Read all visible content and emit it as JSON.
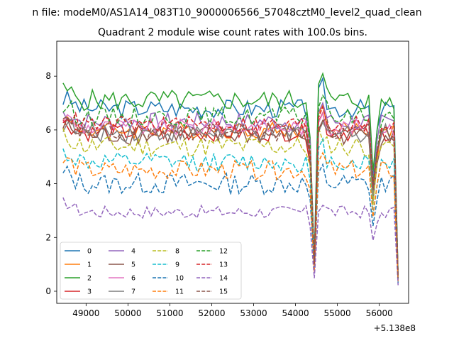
{
  "chart_data": {
    "type": "line",
    "suptitle": "n file: modeM0/AS1A14_083T10_9000006566_57048cztM0_level2_quad_clean",
    "title": "Quadrant 2 module wise count rates with 100.0s bins.",
    "xlabel": "",
    "ylabel": "",
    "x_offset_label": "+5.138e8",
    "xlim": [
      48300,
      56700
    ],
    "ylim": [
      -0.45,
      9.3
    ],
    "xticks": [
      49000,
      50000,
      51000,
      52000,
      53000,
      54000,
      55000,
      56000
    ],
    "xtick_labels": [
      "49000",
      "50000",
      "51000",
      "52000",
      "53000",
      "54000",
      "55000",
      "56000"
    ],
    "yticks": [
      0,
      2,
      4,
      6,
      8
    ],
    "ytick_labels": [
      "0",
      "2",
      "4",
      "6",
      "8"
    ],
    "x_start": 48450,
    "x_step": 100,
    "n_points": 81,
    "legend_position": "lower-left",
    "legend_columns": 4,
    "series": [
      {
        "name": "0",
        "color": "#1f77b4",
        "style": "solid",
        "base": 6.8,
        "noise": 0.22
      },
      {
        "name": "1",
        "color": "#ff7f0e",
        "style": "solid",
        "base": 6.0,
        "noise": 0.2
      },
      {
        "name": "2",
        "color": "#2ca02c",
        "style": "solid",
        "base": 7.1,
        "noise": 0.25
      },
      {
        "name": "3",
        "color": "#d62728",
        "style": "solid",
        "base": 5.9,
        "noise": 0.2
      },
      {
        "name": "4",
        "color": "#9467bd",
        "style": "solid",
        "base": 6.3,
        "noise": 0.22
      },
      {
        "name": "5",
        "color": "#8c564b",
        "style": "solid",
        "base": 5.8,
        "noise": 0.22
      },
      {
        "name": "6",
        "color": "#e377c2",
        "style": "solid",
        "base": 6.1,
        "noise": 0.2
      },
      {
        "name": "7",
        "color": "#7f7f7f",
        "style": "solid",
        "base": 5.9,
        "noise": 0.22
      },
      {
        "name": "8",
        "color": "#bcbd22",
        "style": "dashed",
        "base": 5.4,
        "noise": 0.25
      },
      {
        "name": "9",
        "color": "#17becf",
        "style": "dashed",
        "base": 4.8,
        "noise": 0.22
      },
      {
        "name": "10",
        "color": "#1f77b4",
        "style": "dashed",
        "base": 4.0,
        "noise": 0.25
      },
      {
        "name": "11",
        "color": "#ff7f0e",
        "style": "dashed",
        "base": 4.5,
        "noise": 0.22
      },
      {
        "name": "12",
        "color": "#2ca02c",
        "style": "dashed",
        "base": 6.5,
        "noise": 0.22
      },
      {
        "name": "13",
        "color": "#d62728",
        "style": "dashed",
        "base": 6.2,
        "noise": 0.2
      },
      {
        "name": "14",
        "color": "#9467bd",
        "style": "dashed",
        "base": 2.95,
        "noise": 0.15
      },
      {
        "name": "15",
        "color": "#8c564b",
        "style": "dashed",
        "base": 5.9,
        "noise": 0.22
      }
    ]
  }
}
